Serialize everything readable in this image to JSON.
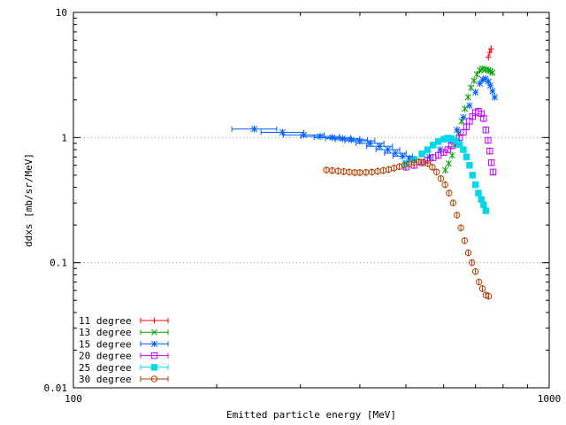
{
  "chart_data": {
    "type": "scatter",
    "title": "",
    "xlabel": "Emitted particle energy [MeV]",
    "ylabel": "ddxs [mb/sr/MeV]",
    "x_scale": "log",
    "y_scale": "log",
    "xlim": [
      100,
      1000
    ],
    "ylim": [
      0.01,
      10
    ],
    "x_ticks": [
      "100",
      "1000"
    ],
    "y_ticks": [
      "0.01",
      "0.1",
      "1",
      "10"
    ],
    "grid": "dotted horizontal at 0.1 and 1",
    "legend_position": "bottom-left",
    "series": [
      {
        "name": "11 degree",
        "color": "#ff0000",
        "marker": "plus",
        "x": [
          745,
          750,
          755
        ],
        "y": [
          4.4,
          4.8,
          5.1
        ]
      },
      {
        "name": "13 degree",
        "color": "#00a000",
        "marker": "cross",
        "x": [
          605,
          615,
          625,
          635,
          645,
          655,
          665,
          675,
          685,
          695,
          705,
          715,
          725,
          735,
          745,
          752,
          760
        ],
        "y": [
          0.55,
          0.62,
          0.72,
          0.88,
          1.08,
          1.35,
          1.7,
          2.1,
          2.5,
          2.85,
          3.2,
          3.45,
          3.55,
          3.5,
          3.45,
          3.4,
          3.3
        ]
      },
      {
        "name": "15 degree",
        "color": "#0060ff",
        "marker": "star",
        "x": [
          240,
          275,
          305,
          330,
          350,
          368,
          384,
          400,
          420,
          440,
          458,
          475,
          492,
          508,
          520,
          560,
          590,
          620,
          640,
          660,
          680,
          700,
          715,
          725,
          735,
          745,
          752,
          760,
          768
        ],
        "y": [
          1.17,
          1.1,
          1.05,
          1.02,
          1.0,
          0.98,
          0.96,
          0.94,
          0.9,
          0.85,
          0.8,
          0.75,
          0.71,
          0.68,
          0.66,
          0.7,
          0.8,
          0.95,
          1.15,
          1.45,
          1.8,
          2.3,
          2.7,
          2.9,
          2.95,
          2.8,
          2.6,
          2.35,
          2.1
        ]
      },
      {
        "name": "20 degree",
        "color": "#c000ff",
        "marker": "square-open",
        "x": [
          500,
          520,
          540,
          555,
          570,
          585,
          600,
          612,
          624,
          636,
          648,
          660,
          670,
          680,
          690,
          700,
          710,
          720,
          728,
          736,
          744,
          750,
          756,
          762
        ],
        "y": [
          0.58,
          0.6,
          0.63,
          0.66,
          0.69,
          0.72,
          0.76,
          0.8,
          0.86,
          0.93,
          1.0,
          1.1,
          1.22,
          1.35,
          1.47,
          1.58,
          1.62,
          1.55,
          1.42,
          1.15,
          0.95,
          0.78,
          0.63,
          0.53
        ]
      },
      {
        "name": "25 degree",
        "color": "#00d8e8",
        "marker": "square-filled",
        "x": [
          500,
          520,
          540,
          555,
          570,
          585,
          600,
          612,
          624,
          636,
          648,
          660,
          670,
          680,
          690,
          700,
          710,
          720,
          728,
          736
        ],
        "y": [
          0.62,
          0.67,
          0.74,
          0.8,
          0.87,
          0.93,
          0.97,
          0.99,
          0.98,
          0.94,
          0.88,
          0.8,
          0.7,
          0.6,
          0.5,
          0.42,
          0.36,
          0.32,
          0.29,
          0.26
        ]
      },
      {
        "name": "30 degree",
        "color": "#b04000",
        "marker": "circle",
        "x": [
          340,
          350,
          360,
          370,
          380,
          390,
          400,
          412,
          424,
          436,
          448,
          460,
          472,
          484,
          496,
          508,
          520,
          532,
          544,
          556,
          568,
          580,
          592,
          604,
          616,
          628,
          640,
          652,
          664,
          676,
          688,
          700,
          712,
          724,
          736,
          746
        ],
        "y": [
          0.55,
          0.545,
          0.54,
          0.535,
          0.53,
          0.525,
          0.525,
          0.527,
          0.53,
          0.537,
          0.545,
          0.555,
          0.57,
          0.585,
          0.6,
          0.615,
          0.63,
          0.64,
          0.635,
          0.62,
          0.58,
          0.53,
          0.47,
          0.42,
          0.36,
          0.3,
          0.24,
          0.19,
          0.15,
          0.12,
          0.1,
          0.085,
          0.07,
          0.062,
          0.055,
          0.054
        ]
      }
    ]
  }
}
